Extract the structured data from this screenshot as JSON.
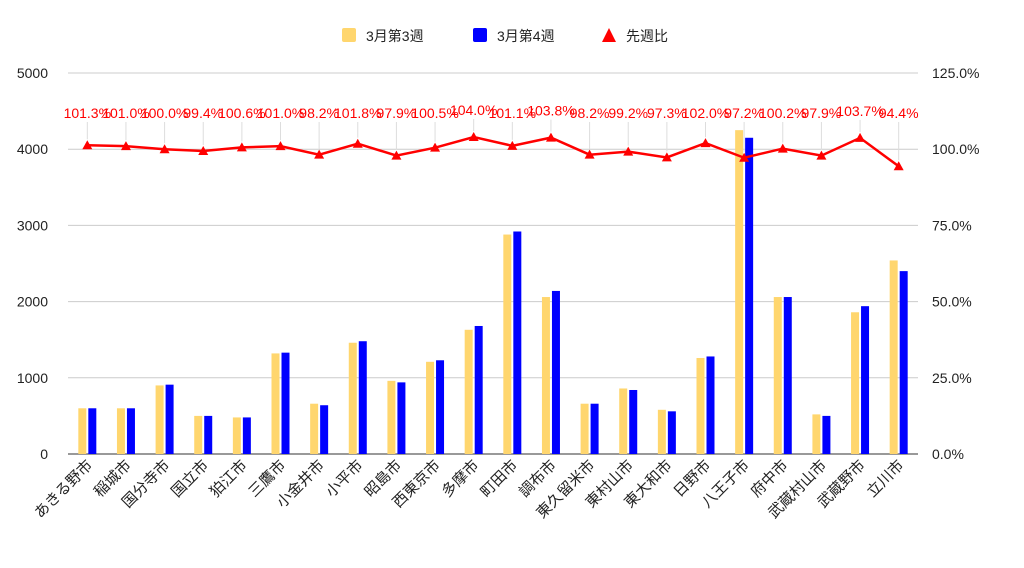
{
  "chart_data": {
    "type": "bar",
    "categories": [
      "あきる野市",
      "稲城市",
      "国分寺市",
      "国立市",
      "狛江市",
      "三鷹市",
      "小金井市",
      "小平市",
      "昭島市",
      "西東京市",
      "多摩市",
      "町田市",
      "調布市",
      "東久留米市",
      "東村山市",
      "東大和市",
      "日野市",
      "八王子市",
      "府中市",
      "武蔵村山市",
      "武蔵野市",
      "立川市"
    ],
    "series": [
      {
        "name": "3月第3週",
        "color": "#FFD66E",
        "axis": "left",
        "values": [
          600,
          600,
          900,
          500,
          480,
          1320,
          660,
          1460,
          960,
          1210,
          1630,
          2880,
          2060,
          660,
          860,
          580,
          1260,
          4250,
          2060,
          520,
          1860,
          2540
        ]
      },
      {
        "name": "3月第4週",
        "color": "#0000FF",
        "axis": "left",
        "values": [
          600,
          600,
          910,
          500,
          480,
          1330,
          640,
          1480,
          940,
          1230,
          1680,
          2920,
          2140,
          660,
          840,
          560,
          1280,
          4150,
          2060,
          500,
          1940,
          2400
        ]
      }
    ],
    "line_series": {
      "name": "先週比",
      "color": "#FF0000",
      "marker": "triangle",
      "axis": "right",
      "values": [
        101.3,
        101.0,
        100.0,
        99.4,
        100.6,
        101.0,
        98.2,
        101.8,
        97.9,
        100.5,
        104.0,
        101.1,
        103.8,
        98.2,
        99.2,
        97.3,
        102.0,
        97.2,
        100.2,
        97.9,
        103.7,
        94.4
      ],
      "labels": [
        "101.3%",
        "101.0%",
        "100.0%",
        "99.4%",
        "100.6%",
        "101.0%",
        "98.2%",
        "101.8%",
        "97.9%",
        "100.5%",
        "104.0%",
        "101.1%",
        "103.8%",
        "98.2%",
        "99.2%",
        "97.3%",
        "102.0%",
        "97.2%",
        "100.2%",
        "97.9%",
        "103.7%",
        "94.4%"
      ]
    },
    "y_left": {
      "min": 0,
      "max": 5000,
      "ticks": [
        "0",
        "1000",
        "2000",
        "3000",
        "4000",
        "5000"
      ]
    },
    "y_right": {
      "min": 0,
      "max": 125,
      "ticks": [
        "0.0%",
        "25.0%",
        "50.0%",
        "75.0%",
        "100.0%",
        "125.0%"
      ]
    },
    "legend_position": "top",
    "grid": true
  }
}
